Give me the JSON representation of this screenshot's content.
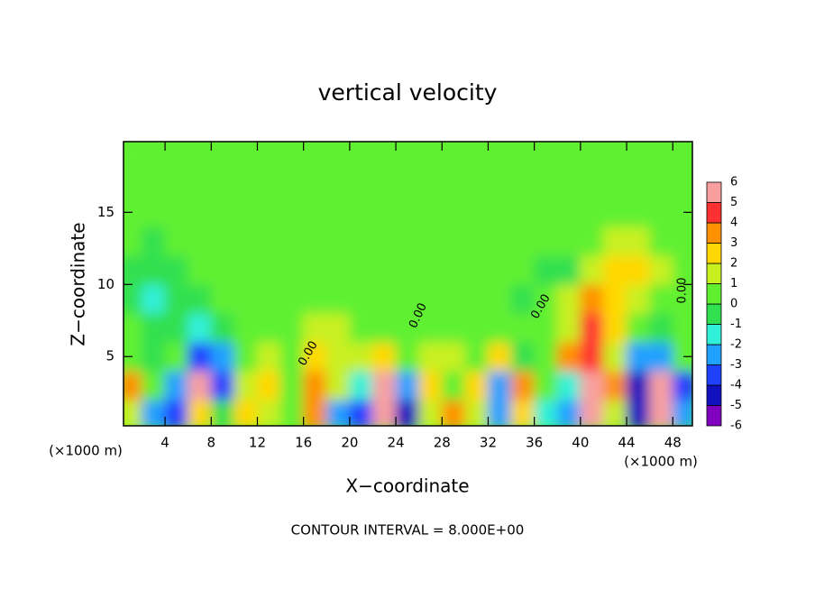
{
  "chart_data": {
    "type": "heatmap",
    "title": "vertical velocity",
    "x_label": "X−coordinate",
    "y_label": "Z−coordinate",
    "x_unit": "(×1000 m)",
    "y_unit": "(×1000 m)",
    "footnote": "CONTOUR INTERVAL = 8.000E+00",
    "xlim": [
      0.4,
      49.7
    ],
    "ylim": [
      0.2,
      19.9
    ],
    "xticks": [
      4,
      8,
      12,
      16,
      20,
      24,
      28,
      32,
      36,
      40,
      44,
      48
    ],
    "yticks": [
      5,
      10,
      15
    ],
    "x": [
      1,
      3,
      5,
      7,
      9,
      11,
      13,
      15,
      17,
      19,
      21,
      23,
      25,
      27,
      29,
      31,
      33,
      35,
      37,
      39,
      41,
      43,
      45,
      47,
      49
    ],
    "y": [
      1,
      3,
      5,
      7,
      9,
      11,
      13,
      15,
      17,
      19
    ],
    "z": [
      [
        1,
        -3,
        -4,
        2,
        -1,
        2,
        1,
        0,
        3,
        -3,
        -4,
        5,
        -5,
        1,
        3,
        1,
        -3,
        2,
        -2,
        -3,
        6,
        1,
        -5,
        6,
        -3
      ],
      [
        3,
        0,
        -3,
        6,
        -4,
        1,
        2,
        0,
        3,
        1,
        -2,
        5,
        -3,
        2,
        0,
        2,
        -3,
        3,
        0,
        -2,
        6,
        3,
        -5,
        6,
        -4
      ],
      [
        0,
        -1,
        0,
        -4,
        -3,
        0,
        1,
        0,
        2,
        1,
        1,
        2,
        0,
        1,
        1,
        0,
        2,
        -1,
        0,
        3,
        4,
        1,
        -3,
        -3,
        0
      ],
      [
        0,
        -1,
        -1,
        -2,
        -1,
        0,
        0,
        0,
        1,
        1,
        0,
        0,
        0,
        0,
        0,
        0,
        0,
        0,
        0,
        1,
        4,
        2,
        0,
        -1,
        0
      ],
      [
        -1,
        -2,
        -1,
        -1,
        0,
        0,
        0,
        0,
        0,
        0,
        0,
        0,
        0,
        0,
        0,
        0,
        0,
        -1,
        0,
        1,
        3,
        2,
        1,
        0,
        0
      ],
      [
        -1,
        -1,
        -1,
        0,
        0,
        0,
        0,
        0,
        0,
        0,
        0,
        0,
        0,
        0,
        0,
        0,
        0,
        0,
        -1,
        -1,
        1,
        2,
        2,
        1,
        0
      ],
      [
        0,
        -1,
        0,
        0,
        0,
        0,
        0,
        0,
        0,
        0,
        0,
        0,
        0,
        0,
        0,
        0,
        0,
        0,
        0,
        0,
        0,
        1,
        1,
        0,
        0
      ],
      [
        0,
        0,
        0,
        0,
        0,
        0,
        0,
        0,
        0,
        0,
        0,
        0,
        0,
        0,
        0,
        0,
        0,
        0,
        0,
        0,
        0,
        0,
        0,
        0,
        0
      ],
      [
        0,
        0,
        0,
        0,
        0,
        0,
        0,
        0,
        0,
        0,
        0,
        0,
        0,
        0,
        0,
        0,
        0,
        0,
        0,
        0,
        0,
        0,
        0,
        0,
        0
      ],
      [
        0,
        0,
        0,
        0,
        0,
        0,
        0,
        0,
        0,
        0,
        0,
        0,
        0,
        0,
        0,
        0,
        0,
        0,
        0,
        0,
        0,
        0,
        0,
        0,
        0
      ]
    ],
    "levels": [
      -6,
      -5,
      -4,
      -3,
      -2,
      -1,
      0,
      1,
      2,
      3,
      4,
      5,
      6
    ],
    "colors": [
      "#8000c0",
      "#1010c0",
      "#2040ff",
      "#20a0ff",
      "#30f0d8",
      "#30e050",
      "#60f030",
      "#c8f020",
      "#ffd800",
      "#ff9000",
      "#ff3030",
      "#f8a0a0"
    ],
    "contour_labels": [
      "0.00",
      "0.00",
      "0.00",
      "0.00"
    ]
  }
}
